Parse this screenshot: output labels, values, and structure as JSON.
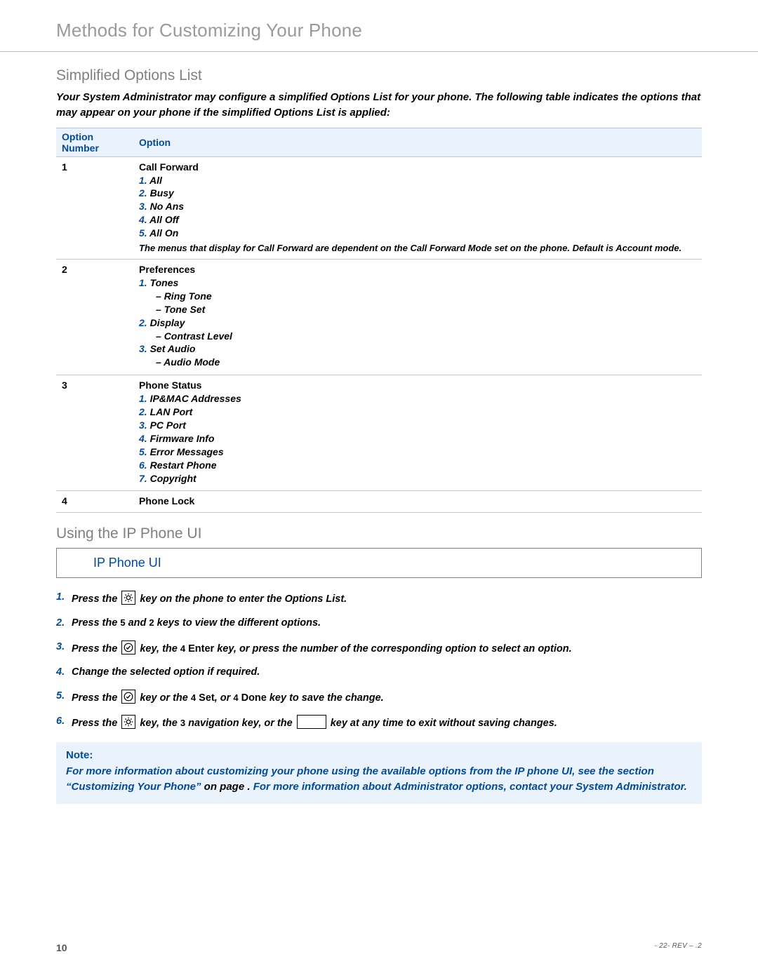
{
  "page_title": "Methods for Customizing Your Phone",
  "section1": {
    "title": "Simplified Options List",
    "intro": "Your System Administrator may configure a simplified Options List for your phone. The following table indicates the options that may appear on your phone if the simplified Options List is applied:"
  },
  "table": {
    "headers": {
      "num": "Option Number",
      "opt": "Option"
    },
    "rows": [
      {
        "num": "1",
        "name": "Call Forward",
        "items": [
          {
            "n": "1.",
            "label": "All"
          },
          {
            "n": "2.",
            "label": "Busy"
          },
          {
            "n": "3.",
            "label": "No Ans"
          },
          {
            "n": "4.",
            "label": "All Off"
          },
          {
            "n": "5.",
            "label": "All On"
          }
        ],
        "foot": "The menus that display for Call Forward are dependent on the Call Forward Mode set on the phone. Default is Account mode."
      },
      {
        "num": "2",
        "name": "Preferences",
        "items": [
          {
            "n": "1.",
            "label": "Tones",
            "subs": [
              "Ring Tone",
              "Tone Set"
            ]
          },
          {
            "n": "2.",
            "label": "Display",
            "subs": [
              "Contrast Level"
            ]
          },
          {
            "n": "3.",
            "label": "Set Audio",
            "subs": [
              "Audio Mode"
            ]
          }
        ]
      },
      {
        "num": "3",
        "name": "Phone Status",
        "items": [
          {
            "n": "1.",
            "label": "IP&MAC Addresses"
          },
          {
            "n": "2.",
            "label": "LAN Port"
          },
          {
            "n": "3.",
            "label": "PC Port"
          },
          {
            "n": "4.",
            "label": "Firmware Info"
          },
          {
            "n": "5.",
            "label": "Error Messages"
          },
          {
            "n": "6.",
            "label": "Restart Phone"
          },
          {
            "n": "7.",
            "label": "Copyright"
          }
        ]
      },
      {
        "num": "4",
        "name": "Phone Lock"
      }
    ]
  },
  "section2": {
    "title": "Using the IP Phone UI",
    "box_header": "IP Phone UI"
  },
  "steps": {
    "s1a": "Press the ",
    "s1b": " key on the phone to enter the Options List.",
    "s2a": "Press the ",
    "s2_k1": "5",
    "s2_mid": " and ",
    "s2_k2": "2",
    "s2b": " keys to view the different options.",
    "s3a": "Press the ",
    "s3b": " key, the ",
    "s3_k": "4",
    "s3_enter": "Enter",
    "s3c": " key, or press the number of the corresponding option to select an option.",
    "s4": "Change the selected option if required.",
    "s5a": "Press the ",
    "s5b": " key or the ",
    "s5_k1": "4",
    "s5_set": "Set",
    "s5_mid": ", or ",
    "s5_k2": "4",
    "s5_done": "Done",
    "s5c": " key to save the change.",
    "s6a": "Press the ",
    "s6b": " key, the ",
    "s6_k": "3",
    "s6c": " navigation key, or the ",
    "s6d": " key at any time to exit without saving changes."
  },
  "note": {
    "label": "Note:",
    "t1": "For more information about customizing your phone using the available options from the IP phone UI, see the section ",
    "link": "“Customizing Your Phone”",
    "t2": " on page ",
    "pg": "  . ",
    "t3": "For more information about Administrator options, contact your System Administrator."
  },
  "footer": {
    "page": "10",
    "rev": "  -      22-    REV    –     .2    "
  },
  "colors": {
    "heading_gray": "#9a9a9a",
    "section_gray": "#808080",
    "accent_blue": "#004a9f",
    "header_bg": "#eaf3fb"
  }
}
